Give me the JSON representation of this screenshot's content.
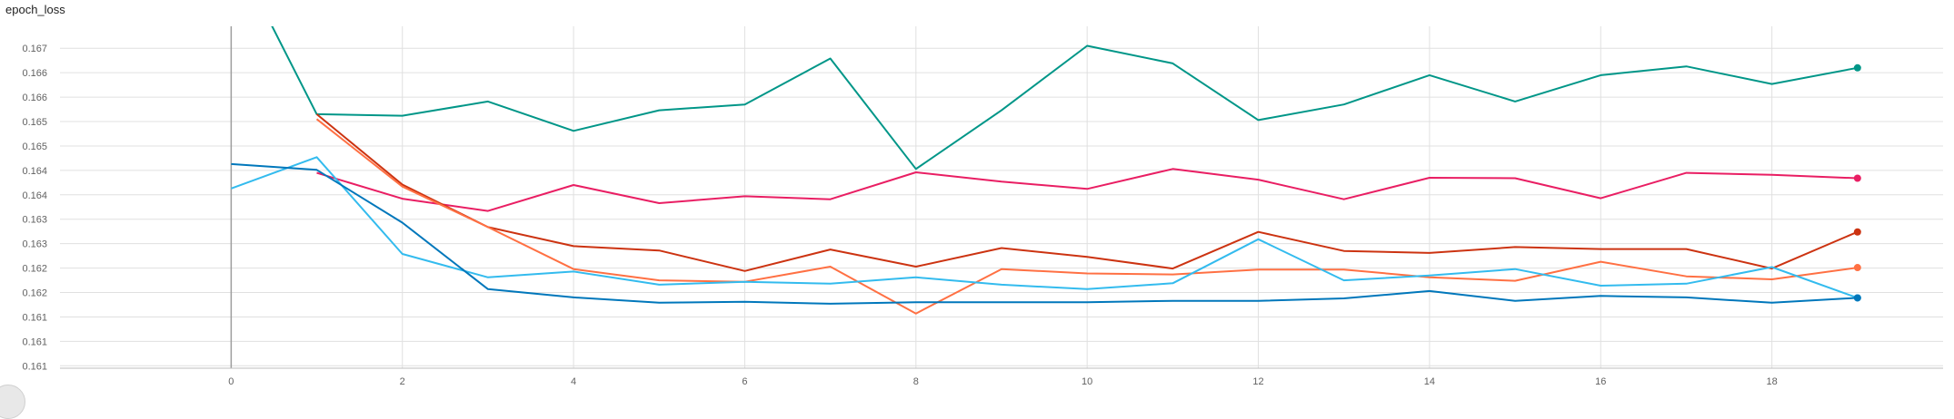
{
  "card": {
    "title": "epoch_loss"
  },
  "chart_data": {
    "type": "line",
    "title": "epoch_loss",
    "xlabel": "",
    "ylabel": "",
    "xlim": [
      -2,
      20
    ],
    "ylim": [
      0.16055,
      0.16755
    ],
    "x_ticks": [
      0,
      2,
      4,
      6,
      8,
      10,
      12,
      14,
      16,
      18
    ],
    "y_ticks": [
      0.1606,
      0.1611,
      0.1616,
      0.1621,
      0.1626,
      0.1631,
      0.1636,
      0.1641,
      0.1646,
      0.1651,
      0.1656,
      0.1661,
      0.1666,
      0.1671
    ],
    "y_tick_labels": [
      "0.161",
      "0.161",
      "0.161",
      "0.162",
      "0.162",
      "0.163",
      "0.163",
      "0.164",
      "0.164",
      "0.165",
      "0.165",
      "0.166",
      "0.166",
      "0.167"
    ],
    "grid": true,
    "series": [
      {
        "color": "#009688",
        "x": [
          0,
          1,
          2,
          3,
          4,
          5,
          6,
          7,
          8,
          9,
          10,
          11,
          12,
          13,
          14,
          15,
          16,
          17,
          18,
          19
        ],
        "values": [
          0.1692,
          0.16575,
          0.16572,
          0.16601,
          0.16541,
          0.16583,
          0.16595,
          0.16689,
          0.16463,
          0.16583,
          0.16715,
          0.16679,
          0.16563,
          0.16595,
          0.16655,
          0.16601,
          0.16655,
          0.16673,
          0.16637,
          0.1667
        ]
      },
      {
        "color": "#e91e63",
        "x": [
          1,
          2,
          3,
          4,
          5,
          6,
          7,
          8,
          9,
          10,
          11,
          12,
          13,
          14,
          15,
          16,
          17,
          18,
          19
        ],
        "values": [
          0.16455,
          0.16402,
          0.16377,
          0.1643,
          0.16393,
          0.16407,
          0.16401,
          0.16456,
          0.16437,
          0.16422,
          0.16463,
          0.16441,
          0.16401,
          0.16445,
          0.16444,
          0.16403,
          0.16455,
          0.16451,
          0.16444
        ]
      },
      {
        "color": "#cc3311",
        "x": [
          1,
          2,
          3,
          4,
          5,
          6,
          7,
          8,
          9,
          10,
          11,
          12,
          13,
          14,
          15,
          16,
          17,
          18,
          19
        ],
        "values": [
          0.16575,
          0.16431,
          0.16344,
          0.16305,
          0.16296,
          0.16254,
          0.16298,
          0.16263,
          0.16301,
          0.16283,
          0.16259,
          0.16334,
          0.16295,
          0.16291,
          0.16303,
          0.16299,
          0.16299,
          0.16259,
          0.16334
        ]
      },
      {
        "color": "#ff7043",
        "x": [
          1,
          2,
          3,
          4,
          5,
          6,
          7,
          8,
          9,
          10,
          11,
          12,
          13,
          14,
          15,
          16,
          17,
          18,
          19
        ],
        "values": [
          0.16565,
          0.16427,
          0.16344,
          0.16258,
          0.16235,
          0.16232,
          0.16263,
          0.16167,
          0.16258,
          0.16249,
          0.16247,
          0.16257,
          0.16257,
          0.16241,
          0.16234,
          0.16273,
          0.16243,
          0.16237,
          0.16261
        ]
      },
      {
        "color": "#33bbee",
        "x": [
          0,
          1,
          2,
          3,
          4,
          5,
          6,
          7,
          8,
          9,
          10,
          11,
          12,
          13,
          14,
          15,
          16,
          17,
          18,
          19
        ],
        "values": [
          0.16423,
          0.16487,
          0.16289,
          0.16241,
          0.16253,
          0.16226,
          0.16232,
          0.16228,
          0.16241,
          0.16226,
          0.16217,
          0.16229,
          0.16319,
          0.16235,
          0.16245,
          0.16258,
          0.16224,
          0.16228,
          0.16262,
          0.16199
        ]
      },
      {
        "color": "#0077bb",
        "x": [
          0,
          1,
          2,
          3,
          4,
          5,
          6,
          7,
          8,
          9,
          10,
          11,
          12,
          13,
          14,
          15,
          16,
          17,
          18,
          19
        ],
        "values": [
          0.16473,
          0.16461,
          0.16353,
          0.16217,
          0.162,
          0.16189,
          0.16191,
          0.16187,
          0.1619,
          0.1619,
          0.1619,
          0.16193,
          0.16193,
          0.16198,
          0.16213,
          0.16193,
          0.16203,
          0.162,
          0.16189,
          0.16199
        ]
      }
    ]
  }
}
